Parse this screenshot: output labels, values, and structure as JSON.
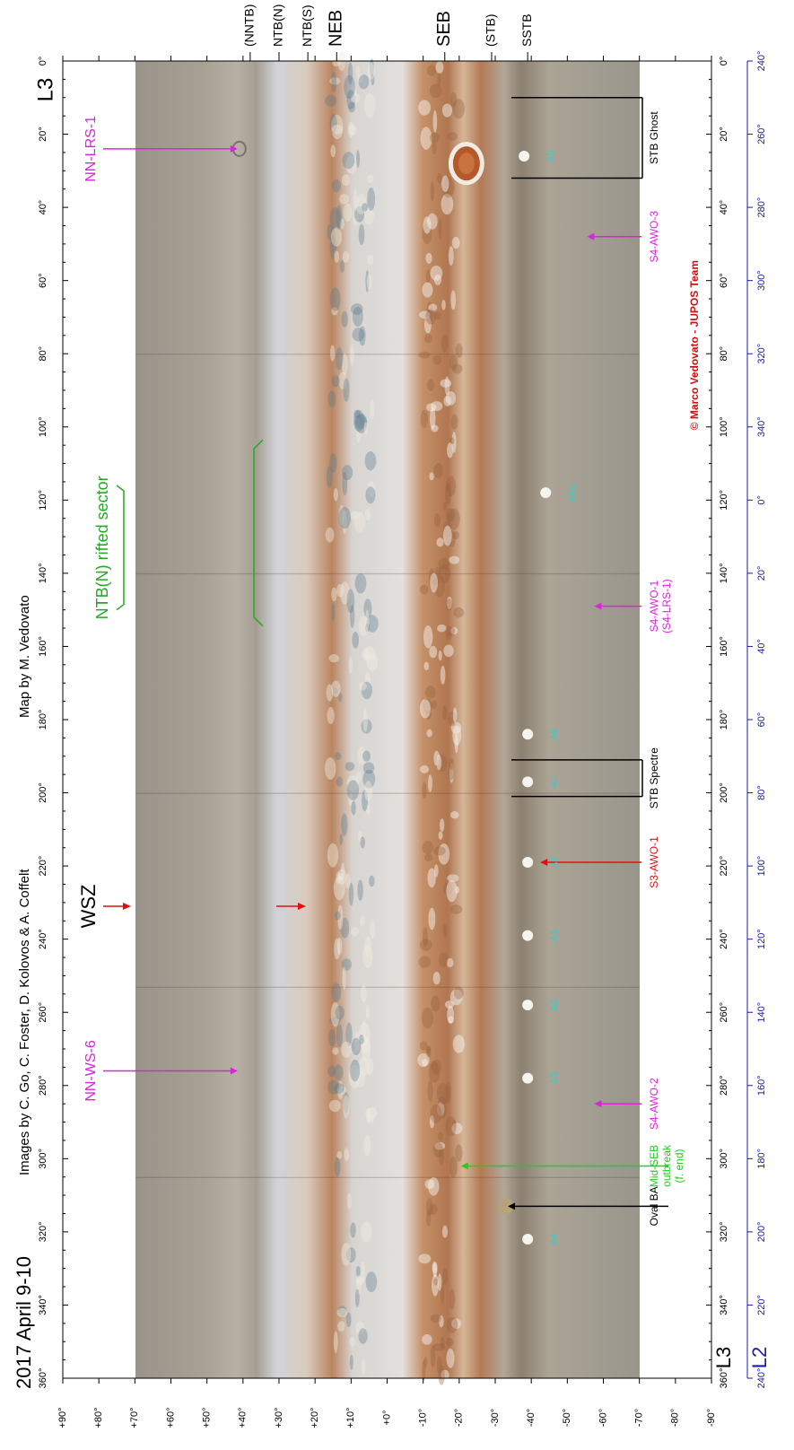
{
  "figure": {
    "date": "2017 April 9-10",
    "credits": "Images by C. Go, C. Foster, D. Kolovos & A. Coffelt",
    "map_by": "Map by M. Vedovato",
    "copyright": "© Marco Vedovato - JUPOS Team",
    "system_label_top": "L3",
    "system_label_bottom_l3": "L3",
    "system_label_bottom_l2": "L2"
  },
  "axes": {
    "l3_range": [
      0,
      360
    ],
    "l3_ticks": [
      "0°",
      "20°",
      "40°",
      "60°",
      "80°",
      "100°",
      "120°",
      "140°",
      "160°",
      "180°",
      "200°",
      "220°",
      "240°",
      "260°",
      "280°",
      "300°",
      "320°",
      "340°",
      "360°"
    ],
    "l2_ticks": [
      "240°",
      "260°",
      "280°",
      "300°",
      "320°",
      "340°",
      "0°",
      "20°",
      "40°",
      "60°",
      "80°",
      "100°",
      "120°",
      "140°",
      "160°",
      "180°",
      "200°",
      "220°",
      "240°"
    ],
    "lat_range": [
      90,
      -90
    ],
    "lat_ticks": [
      "+90°",
      "+80°",
      "+70°",
      "+60°",
      "+50°",
      "+40°",
      "+30°",
      "+20°",
      "+10°",
      "+0°",
      "-10°",
      "-20°",
      "-30°",
      "-40°",
      "-50°",
      "-60°",
      "-70°",
      "-80°",
      "-90°"
    ]
  },
  "belts": [
    {
      "label": "(NNTB)",
      "lat": 38
    },
    {
      "label": "NTB(N)",
      "lat": 30
    },
    {
      "label": "NTB(S)",
      "lat": 22
    },
    {
      "label": "NEB",
      "lat": 14
    },
    {
      "label": "SEB",
      "lat": -16
    },
    {
      "label": "(STB)",
      "lat": -29
    },
    {
      "label": "SSTB",
      "lat": -39
    }
  ],
  "features": [
    {
      "label": "NN-LRS-1",
      "l3": 24,
      "lat": 41,
      "color": "#e020e0",
      "side": "north"
    },
    {
      "label": "NN-WS-6",
      "l3": 276,
      "lat": 41,
      "color": "#e020e0",
      "side": "north"
    },
    {
      "label": "WSZ",
      "l3": 231,
      "lat": 21,
      "color": "#e01010",
      "side": "north"
    },
    {
      "label": "S4-AWO-3",
      "l3": 48,
      "lat": -55,
      "color": "#e020e0",
      "side": "south"
    },
    {
      "label": "S4-AWO-1",
      "label2": "(S4-LRS-1)",
      "l3": 149,
      "lat": -57,
      "color": "#e020e0",
      "side": "south"
    },
    {
      "label": "S3-AWO-1",
      "l3": 219,
      "lat": -42,
      "color": "#e01010",
      "side": "south"
    },
    {
      "label": "S4-AWO-2",
      "l3": 285,
      "lat": -57,
      "color": "#e020e0",
      "side": "south"
    },
    {
      "label": "Oval BA",
      "l3": 313,
      "lat": -33,
      "color": "#000000",
      "side": "south"
    },
    {
      "label": "Mid-SEB",
      "label2": "outbreak",
      "label3": "(f. end)",
      "l3": 302,
      "lat": -20,
      "color": "#22cc22",
      "side": "south"
    }
  ],
  "brackets": [
    {
      "label": "STB Ghost",
      "l3_start": 10,
      "l3_end": 32,
      "lat": -35,
      "color": "#000000"
    },
    {
      "label": "STB Spectre",
      "l3_start": 191,
      "l3_end": 201,
      "lat": -35,
      "color": "#000000"
    },
    {
      "label": "NTB(N) rifted sector",
      "l3_start": 106,
      "l3_end": 152,
      "lat": 36,
      "color": "#22aa22"
    }
  ],
  "spots": [
    {
      "label": "A5",
      "l3": 26,
      "lat": -40
    },
    {
      "label": "A5a",
      "l3": 118,
      "lat": -46
    },
    {
      "label": "A6",
      "l3": 184,
      "lat": -41
    },
    {
      "label": "A7",
      "l3": 197,
      "lat": -41
    },
    {
      "label": "A8",
      "l3": 219,
      "lat": -41
    },
    {
      "label": "A1",
      "l3": 239,
      "lat": -41
    },
    {
      "label": "A2",
      "l3": 258,
      "lat": -41
    },
    {
      "label": "A3",
      "l3": 278,
      "lat": -41
    },
    {
      "label": "A4",
      "l3": 322,
      "lat": -41
    }
  ],
  "colors": {
    "axis_l3": "#000000",
    "axis_l2": "#1a1aa8",
    "spot_label": "#40c8c8",
    "copyright": "#d01010"
  }
}
